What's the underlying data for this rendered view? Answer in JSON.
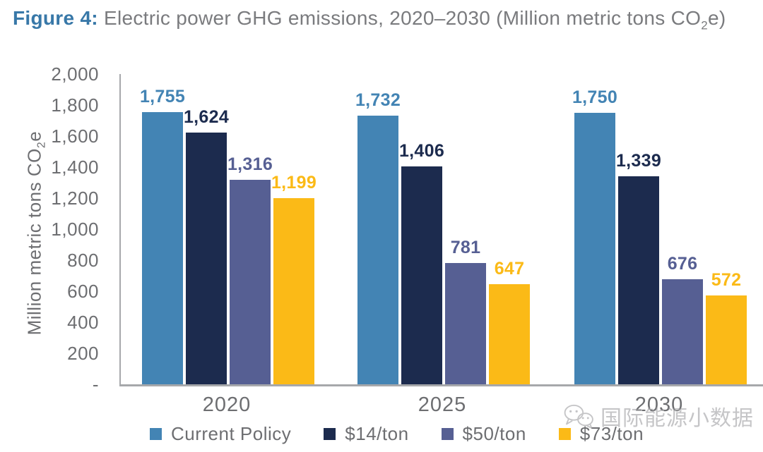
{
  "title": {
    "prefix": "Figure 4:",
    "main": " Electric power GHG emissions, 2020–2030 (Million metric tons CO",
    "subscript": "2",
    "suffix": "e)"
  },
  "axes": {
    "y_title_pre": "Million metric tons CO",
    "y_title_sub": "2",
    "y_title_post": "e",
    "y_ticks": [
      "2,000",
      "1,800",
      "1,600",
      "1,400",
      "1,200",
      "1,000",
      "800",
      "600",
      "400",
      "200",
      "-"
    ],
    "x_categories": [
      "2020",
      "2025",
      "2030"
    ]
  },
  "chart_data": {
    "type": "bar",
    "title": "Figure 4: Electric power GHG emissions, 2020–2030 (Million metric tons CO2e)",
    "categories": [
      "2020",
      "2025",
      "2030"
    ],
    "series": [
      {
        "name": "Current Policy",
        "color": "#4384b4",
        "values": [
          1755,
          1732,
          1750
        ]
      },
      {
        "name": "$14/ton",
        "color": "#1c2b4e",
        "values": [
          1624,
          1406,
          1339
        ]
      },
      {
        "name": "$50/ton",
        "color": "#565f93",
        "values": [
          1316,
          781,
          676
        ]
      },
      {
        "name": "$73/ton",
        "color": "#fbba17",
        "values": [
          1199,
          647,
          572
        ]
      }
    ],
    "ylabel": "Million metric tons CO2e",
    "ylim": [
      0,
      2000
    ],
    "ytick_step": 200,
    "grid": false,
    "legend_position": "bottom",
    "bar_labels": "colored to match series, thousands separated with commas"
  },
  "legend": {
    "items": [
      "Current Policy",
      "$14/ton",
      "$50/ton",
      "$73/ton"
    ]
  },
  "watermark": {
    "text": "国际能源小数据",
    "icon": "wechat-icon"
  },
  "colors": {
    "title_blue": "#3878a8",
    "title_gray": "#7a7b7e",
    "tick_gray": "#6d6e71",
    "axis_line": "#a6a8ab"
  }
}
